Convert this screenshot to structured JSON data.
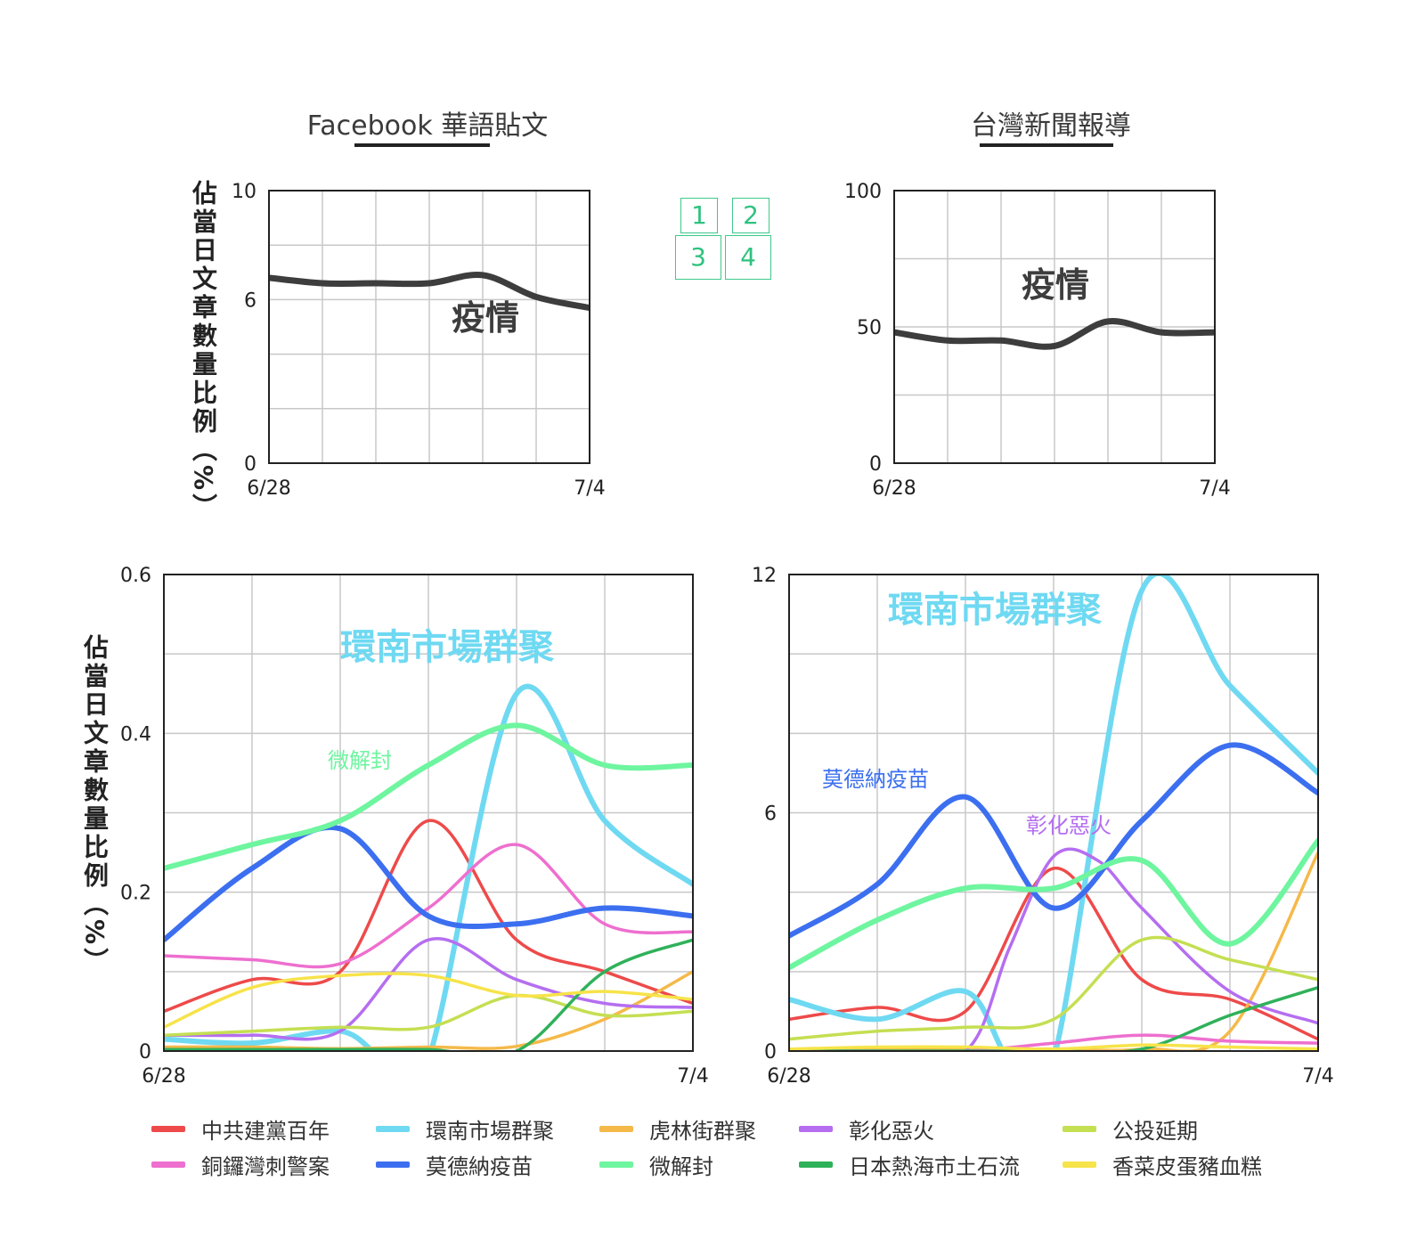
{
  "titles": {
    "left": "Facebook 華語貼文",
    "right": "台灣新聞報導",
    "ylabel": "佔當日文章數量比例（%）"
  },
  "quad_key": [
    "1",
    "2",
    "3",
    "4"
  ],
  "colors": {
    "grid": "#c8c8c8",
    "frame": "#222222",
    "epidemic": "#3d3d3d",
    "key": "#2fc27f"
  },
  "legend": [
    {
      "name": "中共建黨百年",
      "color": "#ee4a4a"
    },
    {
      "name": "環南市場群聚",
      "color": "#6fd9f2"
    },
    {
      "name": "虎林街群聚",
      "color": "#f5b94a"
    },
    {
      "name": "彰化惡火",
      "color": "#b56ef0"
    },
    {
      "name": "公投延期",
      "color": "#c4df52"
    },
    {
      "name": "銅鑼灣刺警案",
      "color": "#ee6fcf"
    },
    {
      "name": "莫德納疫苗",
      "color": "#3c6ff0"
    },
    {
      "name": "微解封",
      "color": "#6ef59f"
    },
    {
      "name": "日本熱海市土石流",
      "color": "#2fb15a"
    },
    {
      "name": "香菜皮蛋豬血糕",
      "color": "#f7e34a"
    }
  ],
  "chart_data": [
    {
      "id": "fb_epidemic",
      "type": "line",
      "title": "Facebook 華語貼文",
      "xlabel": "",
      "ylabel": "佔當日文章數量比例（%）",
      "x_ticks": [
        "6/28",
        "7/4"
      ],
      "y_ticks": [
        "0",
        "6",
        "10"
      ],
      "ylim": [
        0,
        10
      ],
      "grid": true,
      "annotations": [
        "疫情"
      ],
      "series": [
        {
          "name": "疫情",
          "color": "#3d3d3d",
          "x": [
            0,
            1,
            2,
            3,
            4,
            5,
            6
          ],
          "values": [
            6.8,
            6.6,
            6.6,
            6.6,
            6.9,
            6.1,
            5.7
          ]
        }
      ]
    },
    {
      "id": "news_epidemic",
      "type": "line",
      "title": "台灣新聞報導",
      "xlabel": "",
      "ylabel": "",
      "x_ticks": [
        "6/28",
        "7/4"
      ],
      "y_ticks": [
        "0",
        "50",
        "100"
      ],
      "ylim": [
        0,
        100
      ],
      "grid": true,
      "annotations": [
        "疫情"
      ],
      "series": [
        {
          "name": "疫情",
          "color": "#3d3d3d",
          "x": [
            0,
            1,
            2,
            3,
            4,
            5,
            6
          ],
          "values": [
            48,
            45,
            45,
            43,
            52,
            48,
            48
          ]
        }
      ]
    },
    {
      "id": "fb_topics",
      "type": "line",
      "title": "",
      "xlabel": "",
      "ylabel": "佔當日文章數量比例（%）",
      "x_ticks": [
        "6/28",
        "7/4"
      ],
      "y_ticks": [
        "0",
        "0.2",
        "0.4",
        "0.6"
      ],
      "ylim": [
        0,
        0.6
      ],
      "grid": true,
      "annotations": [
        "環南市場群聚",
        "微解封"
      ],
      "series": [
        {
          "name": "中共建黨百年",
          "color": "#ee4a4a",
          "x": [
            0,
            1,
            2,
            3,
            4,
            5,
            6
          ],
          "values": [
            0.05,
            0.09,
            0.1,
            0.29,
            0.14,
            0.1,
            0.06
          ]
        },
        {
          "name": "環南市場群聚",
          "color": "#6fd9f2",
          "x": [
            0,
            1,
            2,
            2.5,
            3,
            4,
            5,
            6
          ],
          "values": [
            0.015,
            0.01,
            0.025,
            -0.01,
            -0.01,
            0.45,
            0.29,
            0.21
          ]
        },
        {
          "name": "虎林街群聚",
          "color": "#f5b94a",
          "x": [
            0,
            1,
            2,
            3,
            4,
            5,
            6
          ],
          "values": [
            0.005,
            0.005,
            0.003,
            0.005,
            0.006,
            0.04,
            0.1
          ]
        },
        {
          "name": "彰化惡火",
          "color": "#b56ef0",
          "x": [
            0,
            1,
            2,
            3,
            4,
            5,
            6
          ],
          "values": [
            0.02,
            0.02,
            0.025,
            0.14,
            0.09,
            0.06,
            0.055
          ]
        },
        {
          "name": "公投延期",
          "color": "#c4df52",
          "x": [
            0,
            1,
            2,
            3,
            4,
            5,
            6
          ],
          "values": [
            0.02,
            0.025,
            0.03,
            0.03,
            0.07,
            0.045,
            0.05
          ]
        },
        {
          "name": "銅鑼灣刺警案",
          "color": "#ee6fcf",
          "x": [
            0,
            1,
            2,
            3,
            4,
            5,
            6
          ],
          "values": [
            0.12,
            0.115,
            0.11,
            0.18,
            0.26,
            0.16,
            0.15
          ]
        },
        {
          "name": "莫德納疫苗",
          "color": "#3c6ff0",
          "x": [
            0,
            1,
            2,
            3,
            4,
            5,
            6
          ],
          "values": [
            0.14,
            0.23,
            0.28,
            0.17,
            0.16,
            0.18,
            0.17
          ]
        },
        {
          "name": "微解封",
          "color": "#6ef59f",
          "x": [
            0,
            1,
            2,
            3,
            4,
            5,
            6
          ],
          "values": [
            0.23,
            0.26,
            0.29,
            0.36,
            0.41,
            0.36,
            0.36
          ]
        },
        {
          "name": "日本熱海市土石流",
          "color": "#2fb15a",
          "x": [
            0,
            1,
            2,
            3,
            4,
            5,
            6
          ],
          "values": [
            0.002,
            0.002,
            0.002,
            0.002,
            0.0,
            0.1,
            0.14
          ]
        },
        {
          "name": "香菜皮蛋豬血糕",
          "color": "#f7e34a",
          "x": [
            0,
            1,
            2,
            3,
            4,
            5,
            6
          ],
          "values": [
            0.03,
            0.08,
            0.095,
            0.095,
            0.07,
            0.075,
            0.065
          ]
        }
      ]
    },
    {
      "id": "news_topics",
      "type": "line",
      "title": "",
      "xlabel": "",
      "ylabel": "",
      "x_ticks": [
        "6/28",
        "7/4"
      ],
      "y_ticks": [
        "0",
        "6",
        "12"
      ],
      "ylim": [
        0,
        12
      ],
      "grid": true,
      "annotations": [
        "環南市場群聚",
        "莫德納疫苗",
        "彰化惡火"
      ],
      "series": [
        {
          "name": "中共建黨百年",
          "color": "#ee4a4a",
          "x": [
            0,
            1,
            2,
            3,
            4,
            5,
            6
          ],
          "values": [
            0.8,
            1.1,
            1.0,
            4.6,
            1.8,
            1.3,
            0.3
          ]
        },
        {
          "name": "環南市場群聚",
          "color": "#6fd9f2",
          "x": [
            0,
            1,
            2,
            2.5,
            3,
            4,
            5,
            6
          ],
          "values": [
            1.3,
            0.8,
            1.5,
            -0.2,
            -0.2,
            11.6,
            9.2,
            7.0
          ]
        },
        {
          "name": "虎林街群聚",
          "color": "#f5b94a",
          "x": [
            0,
            1,
            2,
            3,
            4,
            5,
            6
          ],
          "values": [
            0.05,
            0.05,
            0.05,
            0.05,
            0.05,
            0.5,
            5.0
          ]
        },
        {
          "name": "彰化惡火",
          "color": "#b56ef0",
          "x": [
            0,
            1,
            2,
            2.5,
            3,
            3.5,
            4,
            5,
            6
          ],
          "values": [
            0.0,
            0.0,
            0.0,
            2.6,
            4.9,
            4.8,
            3.6,
            1.5,
            0.7
          ]
        },
        {
          "name": "公投延期",
          "color": "#c4df52",
          "x": [
            0,
            1,
            2,
            3,
            4,
            5,
            6
          ],
          "values": [
            0.3,
            0.5,
            0.6,
            0.8,
            2.8,
            2.3,
            1.8
          ]
        },
        {
          "name": "銅鑼灣刺警案",
          "color": "#ee6fcf",
          "x": [
            0,
            1,
            2,
            3,
            4,
            5,
            6
          ],
          "values": [
            0.0,
            0.0,
            0.0,
            0.2,
            0.4,
            0.25,
            0.2
          ]
        },
        {
          "name": "莫德納疫苗",
          "color": "#3c6ff0",
          "x": [
            0,
            1,
            2,
            3,
            4,
            5,
            6
          ],
          "values": [
            2.9,
            4.2,
            6.4,
            3.6,
            5.8,
            7.7,
            6.5
          ]
        },
        {
          "name": "微解封",
          "color": "#6ef59f",
          "x": [
            0,
            1,
            2,
            3,
            4,
            5,
            6
          ],
          "values": [
            2.1,
            3.3,
            4.1,
            4.1,
            4.8,
            2.7,
            5.3
          ]
        },
        {
          "name": "日本熱海市土石流",
          "color": "#2fb15a",
          "x": [
            0,
            1,
            2,
            3,
            4,
            5,
            6
          ],
          "values": [
            0.0,
            0.0,
            0.0,
            0.0,
            0.05,
            0.9,
            1.6
          ]
        },
        {
          "name": "香菜皮蛋豬血糕",
          "color": "#f7e34a",
          "x": [
            0,
            1,
            2,
            3,
            4,
            5,
            6
          ],
          "values": [
            0.05,
            0.1,
            0.1,
            0.05,
            0.15,
            0.1,
            0.05
          ]
        }
      ]
    }
  ]
}
